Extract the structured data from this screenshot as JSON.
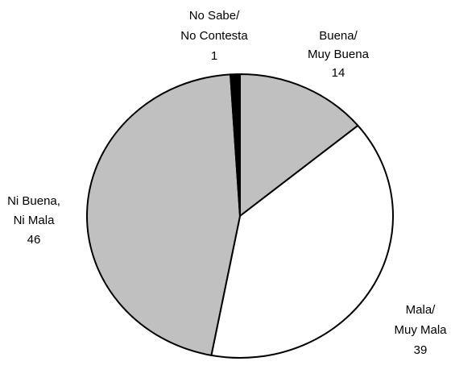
{
  "chart_data": {
    "type": "pie",
    "categories": [
      [
        "Buena/",
        "Muy Buena"
      ],
      [
        "Mala/",
        "Muy Mala"
      ],
      [
        "Ni Buena,",
        "Ni Mala"
      ],
      [
        "No Sabe/",
        "No Contesta"
      ]
    ],
    "values": [
      14,
      39,
      46,
      1
    ],
    "colors": [
      "#c0c0c0",
      "#ffffff",
      "#c0c0c0",
      "#000000"
    ]
  }
}
